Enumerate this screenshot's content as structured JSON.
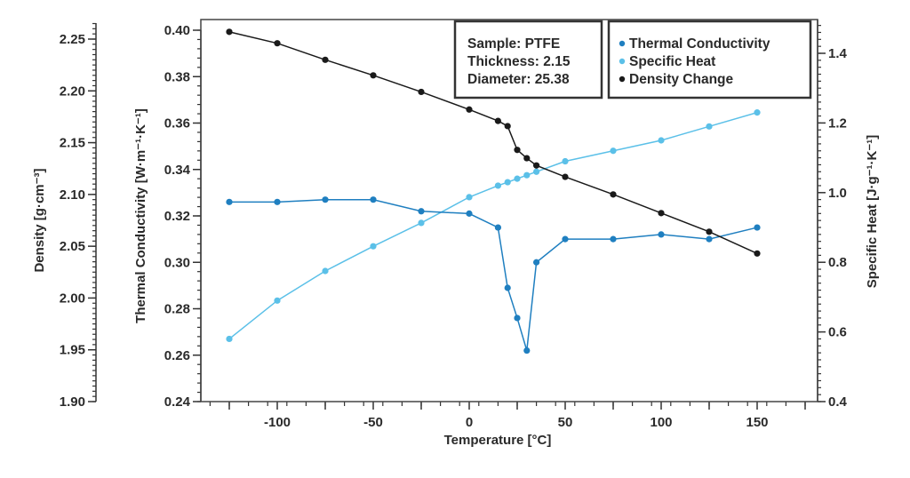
{
  "chart_data": {
    "type": "line",
    "title": "",
    "xlabel": "Temperature [°C]",
    "xlim": [
      -140,
      180
    ],
    "x_ticks": [
      "-100",
      "-50",
      "0",
      "50",
      "100",
      "150"
    ],
    "x_tick_values": [
      -100,
      -50,
      0,
      50,
      100,
      150
    ],
    "axes": {
      "density": {
        "label": "Density [g·cm⁻³]",
        "ylim": [
          1.9,
          2.27
        ],
        "ticks": [
          "1.90",
          "1.95",
          "2.00",
          "2.05",
          "2.10",
          "2.15",
          "2.20",
          "2.25"
        ],
        "tick_values": [
          1.9,
          1.95,
          2.0,
          2.05,
          2.1,
          2.15,
          2.2,
          2.25
        ]
      },
      "conductivity": {
        "label": "Thermal Conductivity [W·m⁻¹·K⁻¹]",
        "ylim": [
          0.24,
          0.404
        ],
        "ticks": [
          "0.24",
          "0.26",
          "0.28",
          "0.30",
          "0.32",
          "0.34",
          "0.36",
          "0.38",
          "0.40"
        ],
        "tick_values": [
          0.24,
          0.26,
          0.28,
          0.3,
          0.32,
          0.34,
          0.36,
          0.38,
          0.4
        ]
      },
      "specific_heat": {
        "label": "Specific Heat [J·g⁻¹·K⁻¹]",
        "ylim": [
          0.4,
          1.5
        ],
        "ticks": [
          "0.4",
          "0.6",
          "0.8",
          "1.0",
          "1.2",
          "1.4"
        ],
        "tick_values": [
          0.4,
          0.6,
          0.8,
          1.0,
          1.2,
          1.4
        ]
      }
    },
    "series": [
      {
        "name": "Thermal Conductivity",
        "axis": "conductivity",
        "color": "#1f7fc0",
        "x": [
          -125,
          -100,
          -75,
          -50,
          -25,
          0,
          15,
          20,
          25,
          30,
          35,
          50,
          75,
          100,
          125,
          150
        ],
        "values": [
          0.326,
          0.326,
          0.327,
          0.327,
          0.322,
          0.321,
          0.315,
          0.289,
          0.276,
          0.262,
          0.3,
          0.31,
          0.31,
          0.312,
          0.31,
          0.315
        ]
      },
      {
        "name": "Specific Heat",
        "axis": "specific_heat",
        "color": "#5bc0e8",
        "x": [
          -125,
          -100,
          -75,
          -50,
          -25,
          0,
          15,
          20,
          25,
          30,
          35,
          50,
          75,
          100,
          125,
          150
        ],
        "values": [
          0.58,
          0.69,
          0.775,
          0.846,
          0.913,
          0.987,
          1.02,
          1.03,
          1.04,
          1.05,
          1.06,
          1.09,
          1.12,
          1.15,
          1.19,
          1.23
        ]
      },
      {
        "name": "Density Change",
        "axis": "density",
        "color": "#1a1a1a",
        "x": [
          -125,
          -100,
          -75,
          -50,
          -25,
          0,
          15,
          20,
          25,
          30,
          35,
          50,
          75,
          100,
          125,
          150
        ],
        "values": [
          2.257,
          2.246,
          2.23,
          2.215,
          2.199,
          2.182,
          2.171,
          2.166,
          2.143,
          2.135,
          2.128,
          2.117,
          2.1,
          2.082,
          2.064,
          2.043
        ]
      }
    ],
    "info_box": [
      "Sample: PTFE",
      "Thickness: 2.15",
      "Diameter: 25.38"
    ],
    "legend": [
      "Thermal Conductivity",
      "Specific Heat",
      "Density Change"
    ],
    "legend_position": "top-right"
  }
}
